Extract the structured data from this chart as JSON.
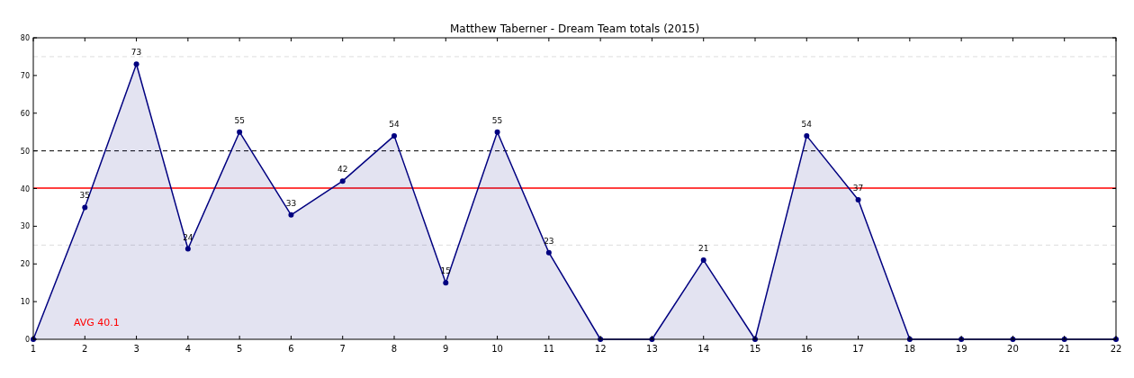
{
  "chart_data": {
    "type": "area",
    "title": "Matthew Taberner - Dream Team totals (2015)",
    "x": [
      1,
      2,
      3,
      4,
      5,
      6,
      7,
      8,
      9,
      10,
      11,
      12,
      13,
      14,
      15,
      16,
      17,
      18,
      19,
      20,
      21,
      22
    ],
    "series": [
      {
        "color": "#000080",
        "values": [
          0,
          35,
          73,
          24,
          55,
          33,
          42,
          54,
          15,
          55,
          23,
          0,
          0,
          21,
          0,
          54,
          37,
          0,
          0,
          0,
          0,
          0
        ],
        "value_labels": [
          null,
          "35",
          "73",
          "24",
          "55",
          "33",
          "42",
          "54",
          "15",
          "55",
          "23",
          null,
          null,
          "21",
          null,
          "54",
          "37",
          null,
          null,
          null,
          null,
          null
        ]
      }
    ],
    "xlim": [
      1,
      22
    ],
    "xticks": [
      1,
      2,
      3,
      4,
      5,
      6,
      7,
      8,
      9,
      10,
      11,
      12,
      13,
      14,
      15,
      16,
      17,
      18,
      19,
      20,
      21,
      22
    ],
    "ylim": [
      0,
      80
    ],
    "yticks": [
      0,
      10,
      20,
      30,
      40,
      50,
      60,
      70,
      80
    ],
    "marker": "circle",
    "line_style": "solid",
    "ref_lines": [
      {
        "axis": "y",
        "value": 40.1,
        "label": "AVG 40.1",
        "color": "#ff0000",
        "line_style": "solid"
      },
      {
        "axis": "y",
        "value": 50,
        "color": "#000000",
        "line_style": "dashed"
      },
      {
        "axis": "y",
        "value": 25,
        "color": "#dddddd",
        "line_style": "dashed"
      },
      {
        "axis": "y",
        "value": 75,
        "color": "#dddddd",
        "line_style": "dashed"
      }
    ]
  }
}
